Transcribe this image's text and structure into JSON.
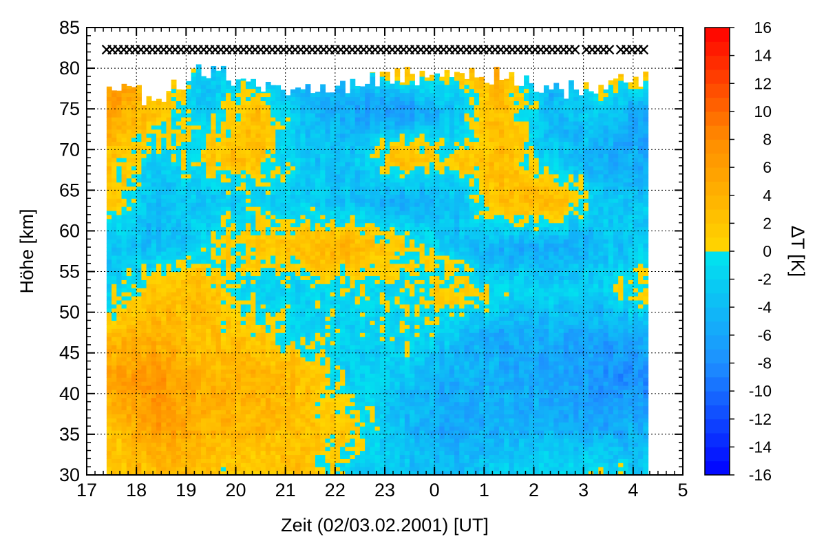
{
  "chart_data": {
    "type": "heatmap",
    "title": "",
    "xlabel": "Zeit (02/03.02.2001) [UT]",
    "ylabel": "Höhe [km]",
    "colorbar_label": "ΔT [K]",
    "x_unit": "hours (UT), wrapping past midnight",
    "xlim": [
      17,
      29
    ],
    "ylim": [
      30,
      85
    ],
    "x_tick_labels": [
      "17",
      "18",
      "19",
      "20",
      "21",
      "22",
      "23",
      "0",
      "1",
      "2",
      "3",
      "4",
      "5"
    ],
    "y_tick_labels": [
      "30",
      "35",
      "40",
      "45",
      "50",
      "55",
      "60",
      "65",
      "70",
      "75",
      "80",
      "85"
    ],
    "colorbar_range": [
      -16,
      16
    ],
    "colorbar_tick_labels": [
      "16",
      "14",
      "12",
      "10",
      "8",
      "6",
      "4",
      "2",
      "0",
      "-2",
      "-4",
      "-6",
      "-8",
      "-10",
      "-12",
      "-14",
      "-16"
    ],
    "grid": true,
    "data_x_range": [
      17.4,
      28.3
    ],
    "data_y_bottom": 30,
    "hour_columns": [
      "17-18",
      "18-19",
      "19-20",
      "20-21",
      "21-22",
      "22-23",
      "23-0",
      "0-1",
      "1-2",
      "2-3",
      "3-4",
      "4-4.3"
    ],
    "altitude_rows_km": [
      "30-35",
      "35-40",
      "40-45",
      "45-50",
      "50-55",
      "55-60",
      "60-65",
      "65-70",
      "70-75",
      "75-80"
    ],
    "delta_T_K": [
      [
        2,
        3,
        2,
        1,
        3,
        -2,
        -3,
        -4,
        -2,
        -1,
        0,
        -3
      ],
      [
        2,
        6,
        4,
        3,
        2,
        1,
        -4,
        -6,
        -5,
        -5,
        -6,
        -5
      ],
      [
        6,
        7,
        4,
        4,
        3,
        -2,
        -3,
        -5,
        -5,
        -6,
        -7,
        -8
      ],
      [
        3,
        4,
        2,
        2,
        -1,
        -2,
        -1,
        -3,
        -6,
        -5,
        -6,
        -5
      ],
      [
        -2,
        2,
        3,
        -2,
        -2,
        -1,
        -1,
        2,
        -1,
        -2,
        -2,
        1
      ],
      [
        -3,
        -4,
        -1,
        2,
        3,
        4,
        1,
        -3,
        -5,
        -6,
        -4,
        -2
      ],
      [
        3,
        -4,
        -3,
        -2,
        -2,
        -4,
        -6,
        -4,
        3,
        4,
        -2,
        -3
      ],
      [
        3,
        -2,
        2,
        3,
        -3,
        -3,
        4,
        1,
        3,
        -3,
        -5,
        -6
      ],
      [
        6,
        2,
        -3,
        3,
        -4,
        -6,
        -8,
        -4,
        3,
        -4,
        -2,
        -6
      ],
      [
        8,
        4,
        -3,
        -4,
        -4,
        -2,
        4,
        2,
        5,
        -6,
        3,
        2
      ]
    ],
    "upper_boundary_km": [
      78.5,
      76,
      80,
      78,
      77,
      78,
      79,
      79,
      79,
      77,
      78,
      79
    ],
    "marker_row": {
      "symbol": "×",
      "altitude_km": 82.3,
      "x_range": [
        17.4,
        28.3
      ],
      "gaps_near": [
        26.9,
        27.6
      ],
      "description": "profile markers"
    },
    "colormap": [
      "#0000ff",
      "#1e90ff",
      "#00e5ee",
      "#ffd700",
      "#ff8c00",
      "#ff0000"
    ]
  }
}
